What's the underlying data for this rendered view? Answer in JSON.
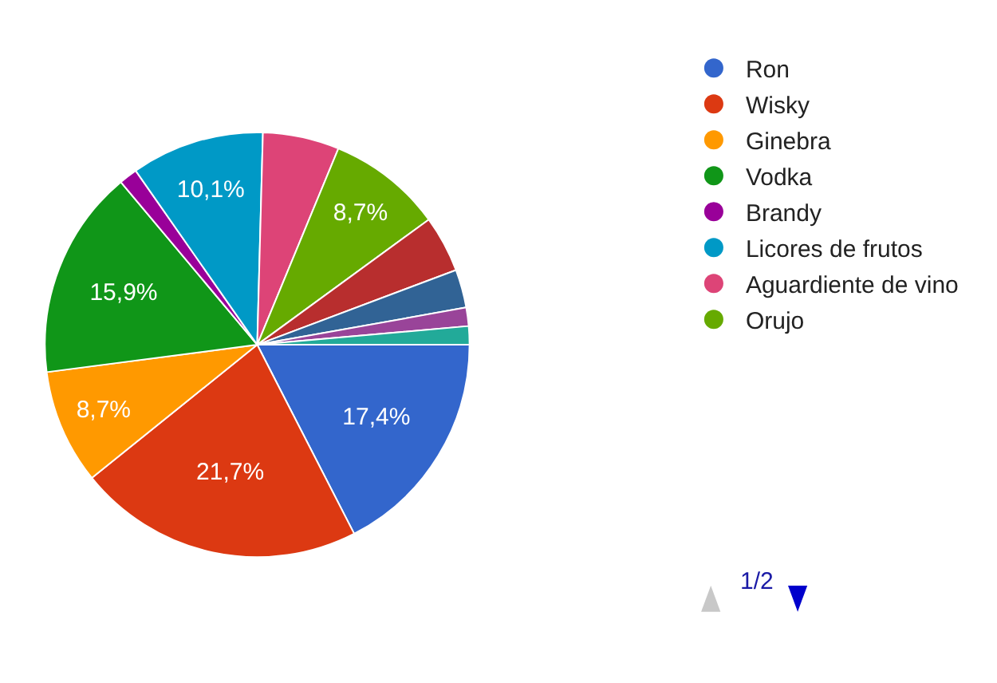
{
  "chart_data": {
    "type": "pie",
    "categories": [
      "Ron",
      "Wisky",
      "Ginebra",
      "Vodka",
      "Brandy",
      "Licores de frutos",
      "Aguardiente de vino",
      "Orujo",
      null,
      null,
      null,
      null
    ],
    "values": [
      17.4,
      21.7,
      8.7,
      15.9,
      1.4,
      10.1,
      5.8,
      8.7,
      4.3,
      2.9,
      1.4,
      1.4
    ],
    "colors": [
      "#3366cc",
      "#dc3912",
      "#ff9900",
      "#109618",
      "#990099",
      "#0099c6",
      "#dd4477",
      "#66aa00",
      "#b82e2e",
      "#316395",
      "#994499",
      "#22aa99"
    ],
    "value_labels": [
      "17,4%",
      "21,7%",
      "8,7%",
      "15,9%",
      null,
      "10,1%",
      null,
      "8,7%",
      null,
      null,
      null,
      null
    ],
    "legend": "top right",
    "annotations": [
      "1/2"
    ]
  }
}
